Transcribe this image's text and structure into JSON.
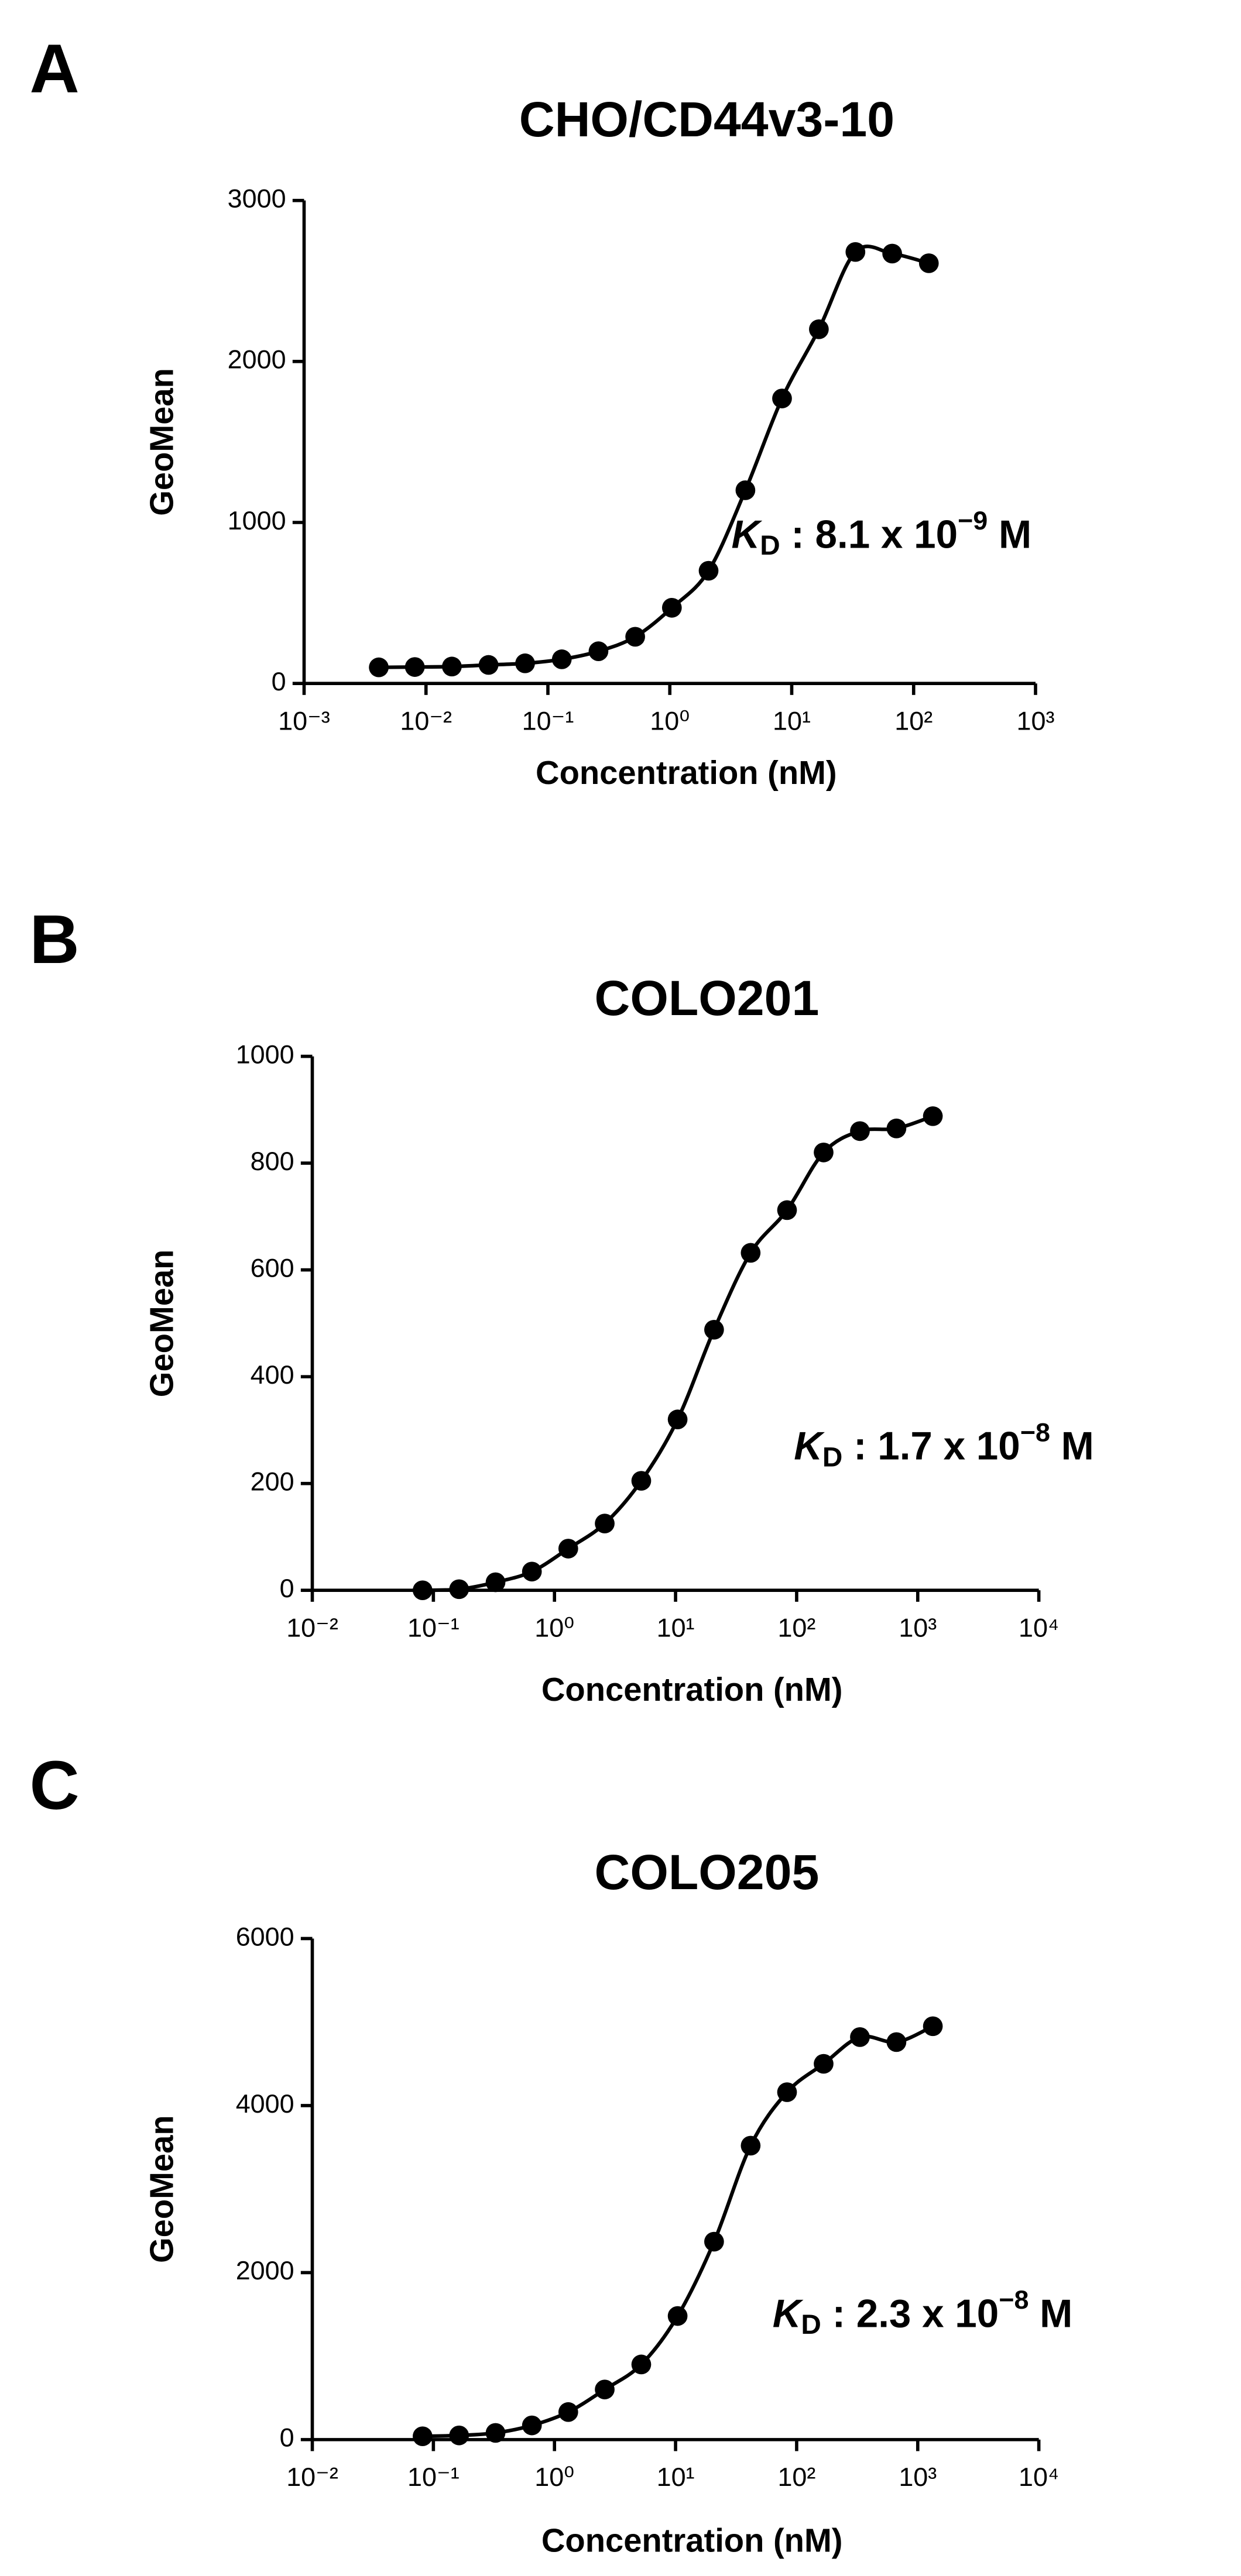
{
  "chart_data": [
    {
      "type": "scatter",
      "panel_label": "A",
      "title": "CHO/CD44v3-10",
      "x_label": "Concentration (nM)",
      "y_label": "GeoMean",
      "log_x": true,
      "fit_line": true,
      "color": "#000000",
      "xlim": [
        0.001,
        1000
      ],
      "xticks": [
        {
          "value": 0.001,
          "label": "10⁻³"
        },
        {
          "value": 0.01,
          "label": "10⁻²"
        },
        {
          "value": 0.1,
          "label": "10⁻¹"
        },
        {
          "value": 1,
          "label": "10⁰"
        },
        {
          "value": 10,
          "label": "10¹"
        },
        {
          "value": 100,
          "label": "10²"
        },
        {
          "value": 1000,
          "label": "10³"
        }
      ],
      "ylim": [
        0,
        3000
      ],
      "yticks": [
        0,
        1000,
        2000,
        3000
      ],
      "x": [
        0.0041,
        0.0081,
        0.0163,
        0.0326,
        0.065,
        0.13,
        0.26,
        0.52,
        1.04,
        2.08,
        4.17,
        8.33,
        16.7,
        33.3,
        66.7,
        133.3
      ],
      "values": [
        100,
        102,
        105,
        115,
        125,
        150,
        200,
        290,
        470,
        700,
        1200,
        1770,
        2200,
        2680,
        2670,
        2610
      ],
      "annotation": {
        "symbol": "K",
        "subscript": "D",
        "text": " : 8.1 x 10",
        "superscript": "−9",
        "unit": " M"
      }
    },
    {
      "type": "scatter",
      "panel_label": "B",
      "title": "COLO201",
      "x_label": "Concentration (nM)",
      "y_label": "GeoMean",
      "log_x": true,
      "fit_line": true,
      "color": "#000000",
      "xlim": [
        0.01,
        10000
      ],
      "xticks": [
        {
          "value": 0.01,
          "label": "10⁻²"
        },
        {
          "value": 0.1,
          "label": "10⁻¹"
        },
        {
          "value": 1,
          "label": "10⁰"
        },
        {
          "value": 10,
          "label": "10¹"
        },
        {
          "value": 100,
          "label": "10²"
        },
        {
          "value": 1000,
          "label": "10³"
        },
        {
          "value": 10000,
          "label": "10⁴"
        }
      ],
      "ylim": [
        0,
        1000
      ],
      "yticks": [
        0,
        200,
        400,
        600,
        800,
        1000
      ],
      "x": [
        0.0814,
        0.163,
        0.326,
        0.651,
        1.3,
        2.6,
        5.21,
        10.4,
        20.8,
        41.7,
        83.3,
        167,
        333,
        667,
        1333
      ],
      "values": [
        0,
        2,
        15,
        35,
        78,
        125,
        205,
        320,
        488,
        632,
        712,
        820,
        860,
        865,
        888
      ],
      "annotation": {
        "symbol": "K",
        "subscript": "D",
        "text": " : 1.7 x 10",
        "superscript": "−8",
        "unit": " M"
      }
    },
    {
      "type": "scatter",
      "panel_label": "C",
      "title": "COLO205",
      "x_label": "Concentration (nM)",
      "y_label": "GeoMean",
      "log_x": true,
      "fit_line": true,
      "color": "#000000",
      "xlim": [
        0.01,
        10000
      ],
      "xticks": [
        {
          "value": 0.01,
          "label": "10⁻²"
        },
        {
          "value": 0.1,
          "label": "10⁻¹"
        },
        {
          "value": 1,
          "label": "10⁰"
        },
        {
          "value": 10,
          "label": "10¹"
        },
        {
          "value": 100,
          "label": "10²"
        },
        {
          "value": 1000,
          "label": "10³"
        },
        {
          "value": 10000,
          "label": "10⁴"
        }
      ],
      "ylim": [
        0,
        6000
      ],
      "yticks": [
        0,
        2000,
        4000,
        6000
      ],
      "x": [
        0.0814,
        0.163,
        0.326,
        0.651,
        1.3,
        2.6,
        5.21,
        10.4,
        20.8,
        41.7,
        83.3,
        167,
        333,
        667,
        1333
      ],
      "values": [
        40,
        50,
        80,
        170,
        330,
        600,
        900,
        1480,
        2370,
        3520,
        4160,
        4500,
        4820,
        4760,
        4950
      ],
      "annotation": {
        "symbol": "K",
        "subscript": "D",
        "text": " : 2.3 x 10",
        "superscript": "−8",
        "unit": " M"
      }
    }
  ]
}
